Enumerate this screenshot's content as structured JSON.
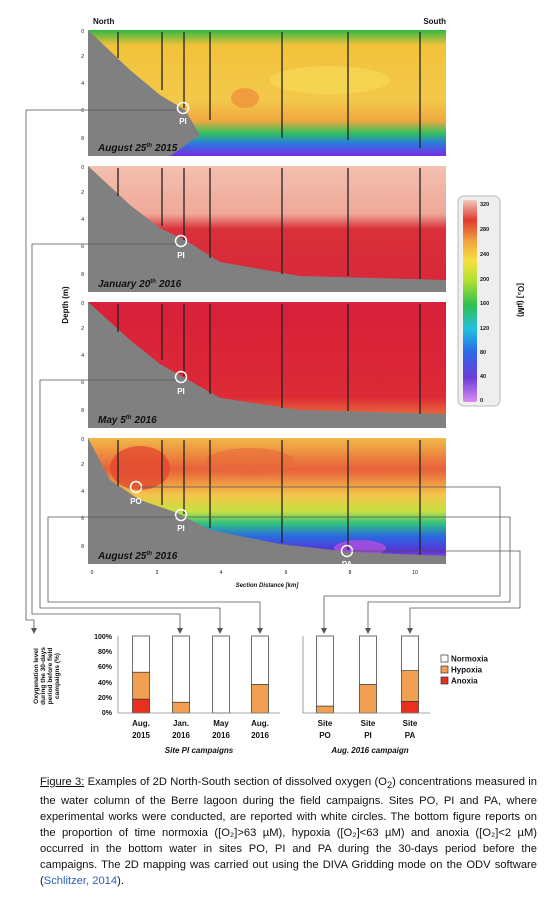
{
  "figure": {
    "top_labels": {
      "north": "North",
      "south": "South"
    },
    "y_axis_title": "Depth (m)",
    "x_axis_title": "Section Distance [km]",
    "x_ticks": [
      "0",
      "2",
      "4",
      "6",
      "8",
      "10"
    ],
    "depth_ticks": [
      "0",
      "2",
      "4",
      "6",
      "8"
    ],
    "colorbar": {
      "title": "[O₂] (µM)",
      "ticks": [
        "320",
        "280",
        "240",
        "200",
        "160",
        "120",
        "80",
        "40",
        "0"
      ]
    },
    "panels": [
      {
        "date": "August 25",
        "sup": "th",
        "year": "2015",
        "sites": [
          "PI"
        ]
      },
      {
        "date": "January 20",
        "sup": "th",
        "year": "2016",
        "sites": [
          "PI"
        ]
      },
      {
        "date": "May 5",
        "sup": "th",
        "year": "2016",
        "sites": [
          "PI"
        ]
      },
      {
        "date": "August 25",
        "sup": "th",
        "year": "2016",
        "sites": [
          "PO",
          "PI",
          "PA"
        ]
      }
    ]
  },
  "chart_data": {
    "type": "bar",
    "stacked": true,
    "ylabel": "Oxygenation level during the 30-days period before field campaigns (%)",
    "ylim": [
      0,
      100
    ],
    "y_ticks": [
      "100%",
      "80%",
      "60%",
      "40%",
      "20%",
      "0%"
    ],
    "legend": [
      "Normoxia",
      "Hypoxia",
      "Anoxia"
    ],
    "legend_position": "right",
    "colors": {
      "Normoxia": "#ffffff",
      "Hypoxia": "#f0a050",
      "Anoxia": "#e8301f"
    },
    "groups": [
      {
        "label": "Site PI campaigns",
        "categories": [
          [
            "Aug.",
            "2015"
          ],
          [
            "Jan.",
            "2016"
          ],
          [
            "May",
            "2016"
          ],
          [
            "Aug.",
            "2016"
          ]
        ],
        "anoxia": [
          18,
          0,
          0,
          0
        ],
        "hypoxia": [
          35,
          14,
          0,
          37
        ],
        "normoxia": [
          47,
          86,
          100,
          63
        ]
      },
      {
        "label": "Aug. 2016 campaign",
        "categories": [
          [
            "Site",
            "PO"
          ],
          [
            "Site",
            "PI"
          ],
          [
            "Site",
            "PA"
          ]
        ],
        "anoxia": [
          0,
          0,
          15
        ],
        "hypoxia": [
          9,
          37,
          40
        ],
        "normoxia": [
          91,
          63,
          45
        ]
      }
    ]
  },
  "caption": {
    "figure_label": "Figure 3:",
    "pre": "Examples of 2D North-South section of dissolved oxygen (O",
    "sub": "2",
    "body": ") concentrations measured in the water column of the Berre lagoon during the field campaigns. Sites PO, PI and PA, where experimental works were conducted, are reported with white circles. The bottom figure reports on the proportion of time normoxia ([O₂]>63 µM), hypoxia ([O₂]<63 µM) and anoxia ([O₂]<2 µM) occurred in the bottom water in sites PO, PI and PA during the 30-days period before the campaigns. The 2D mapping was carried out using the DIVA Gridding mode on the ODV software (",
    "citation": "Schlitzer, 2014",
    "end": ")."
  }
}
